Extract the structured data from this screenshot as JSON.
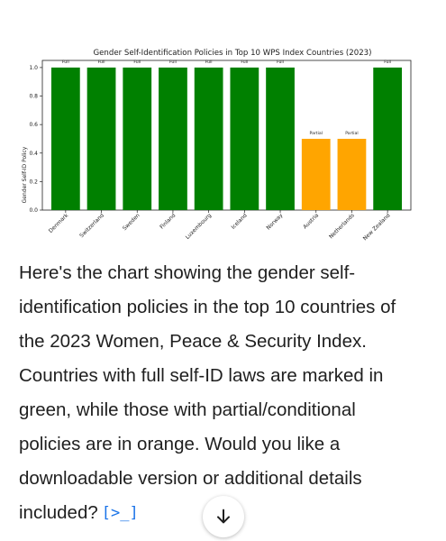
{
  "chart_data": {
    "type": "bar",
    "title": "Gender Self-Identification Policies in Top 10 WPS Index Countries (2023)",
    "xlabel": "",
    "ylabel": "Gender Self-ID Policy",
    "ylim": [
      0,
      1.05
    ],
    "yticks": [
      "0.0",
      "0.2",
      "0.4",
      "0.6",
      "0.8",
      "1.0"
    ],
    "grid": false,
    "categories": [
      "Denmark",
      "Switzerland",
      "Sweden",
      "Finland",
      "Luxembourg",
      "Iceland",
      "Norway",
      "Austria",
      "Netherlands",
      "New Zealand"
    ],
    "values": [
      1,
      1,
      1,
      1,
      1,
      1,
      1,
      0.5,
      0.5,
      1
    ],
    "labels": [
      "Full",
      "Full",
      "Full",
      "Full",
      "Full",
      "Full",
      "Full",
      "Partial",
      "Partial",
      "Full"
    ],
    "colors": {
      "Full": "#008000",
      "Partial": "#ffa500"
    }
  },
  "message": {
    "text": "Here's the chart showing the gender self-identification policies in the top 10 countries of the 2023 Women, Peace & Security Index. Countries with full self-ID laws are marked in green, while those with partial/conditional policies are in orange. Would you like a downloadable version or additional details included?"
  },
  "icons": {
    "code": "code-icon",
    "scroll": "arrow-down-icon"
  }
}
